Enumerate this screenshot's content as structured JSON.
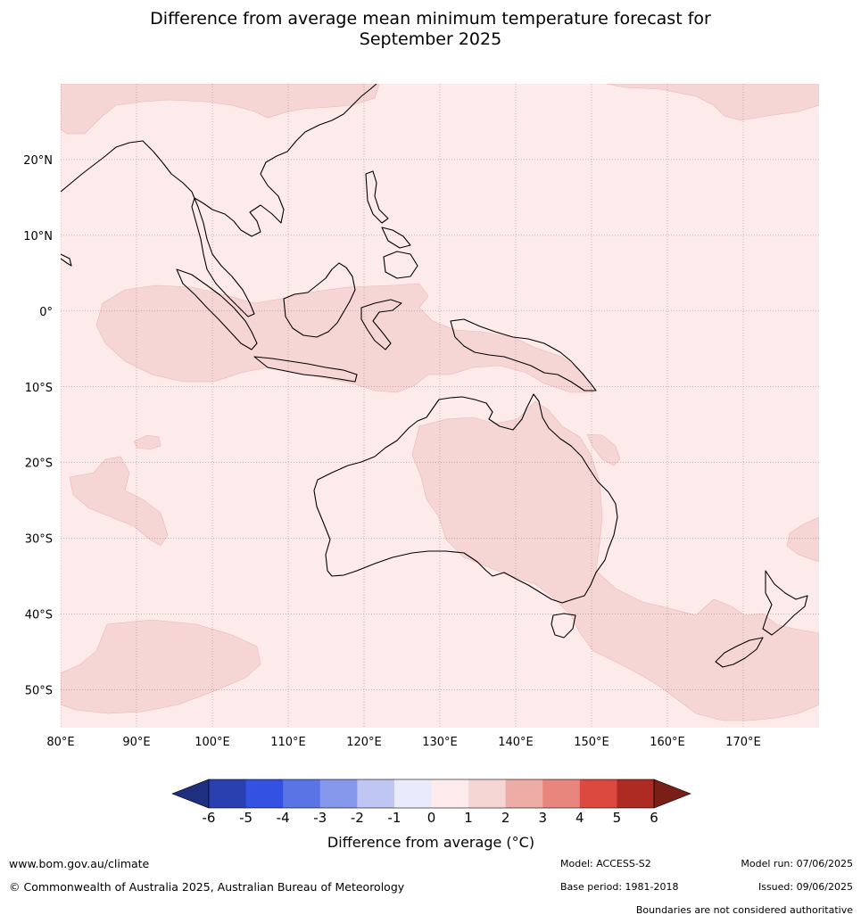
{
  "title": {
    "line1": "Difference from average mean minimum temperature forecast for",
    "line2": "September 2025"
  },
  "map": {
    "lon_range": [
      80,
      180
    ],
    "lat_range": [
      -55,
      30
    ],
    "lon_ticks": [
      {
        "value": 80,
        "label": "80°E"
      },
      {
        "value": 90,
        "label": "90°E"
      },
      {
        "value": 100,
        "label": "100°E"
      },
      {
        "value": 110,
        "label": "110°E"
      },
      {
        "value": 120,
        "label": "120°E"
      },
      {
        "value": 130,
        "label": "130°E"
      },
      {
        "value": 140,
        "label": "140°E"
      },
      {
        "value": 150,
        "label": "150°E"
      },
      {
        "value": 160,
        "label": "160°E"
      },
      {
        "value": 170,
        "label": "170°E"
      }
    ],
    "lat_ticks": [
      {
        "value": 20,
        "label": "20°N"
      },
      {
        "value": 10,
        "label": "10°N"
      },
      {
        "value": 0,
        "label": "0°"
      },
      {
        "value": -10,
        "label": "10°S"
      },
      {
        "value": -20,
        "label": "20°S"
      },
      {
        "value": -30,
        "label": "30°S"
      },
      {
        "value": -40,
        "label": "40°S"
      },
      {
        "value": -50,
        "label": "50°S"
      }
    ],
    "background_color": "#fcebea",
    "anomaly_color": "#f6d6d4",
    "anomaly_band": "1 to 2"
  },
  "colorbar": {
    "labels": [
      "-6",
      "-5",
      "-4",
      "-3",
      "-2",
      "-1",
      "0",
      "1",
      "2",
      "3",
      "4",
      "5",
      "6"
    ],
    "colors": [
      "#2a3fb0",
      "#3352e2",
      "#5a74e6",
      "#8698ec",
      "#bfc6f4",
      "#e8ebfb",
      "#fcebea",
      "#f6d6d4",
      "#eeaca6",
      "#e8857d",
      "#dc4a3f",
      "#ad2b22"
    ],
    "under_color": "#1f2f80",
    "over_color": "#7a1e18",
    "title": "Difference from average (°C)"
  },
  "footer": {
    "website": "www.bom.gov.au/climate",
    "copyright": "© Commonwealth of Australia 2025, Australian Bureau of Meteorology",
    "model": "Model: ACCESS-S2",
    "base_period": "Base period: 1981-2018",
    "model_run": "Model run: 07/06/2025",
    "issued": "Issued: 09/06/2025",
    "disclaimer": "Boundaries are not considered authoritative"
  }
}
